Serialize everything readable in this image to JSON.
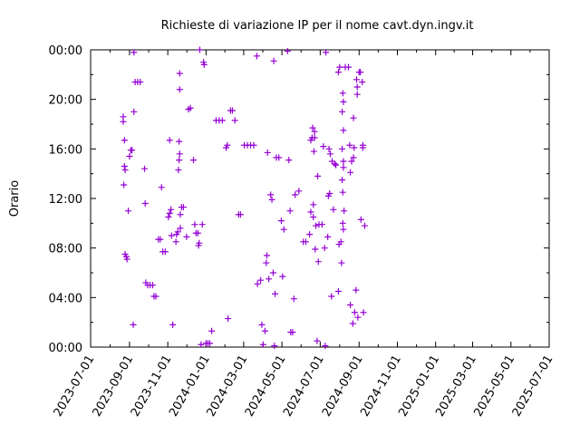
{
  "chart_data": {
    "type": "scatter",
    "title": "Richieste di variazione IP per il nome cavt.dyn.ingv.it",
    "ylabel": "Orario",
    "xlabel": "",
    "x_range": [
      "2023-07-01",
      "2025-07-01"
    ],
    "y_range_hours": [
      0,
      24
    ],
    "x_ticks": [
      "2023-07-01",
      "2023-09-01",
      "2023-11-01",
      "2024-01-01",
      "2024-03-01",
      "2024-05-01",
      "2024-07-01",
      "2024-09-01",
      "2024-11-01",
      "2025-01-01",
      "2025-03-01",
      "2025-05-01",
      "2025-07-01"
    ],
    "y_ticks": [
      "00:00",
      "04:00",
      "08:00",
      "12:00",
      "16:00",
      "20:00",
      "00:00"
    ],
    "marker": "+",
    "color": "#9400d3",
    "grid": false,
    "points": [
      [
        "2023-08-22",
        18.2
      ],
      [
        "2023-08-22",
        18.6
      ],
      [
        "2023-08-23",
        13.1
      ],
      [
        "2023-08-24",
        16.7
      ],
      [
        "2023-08-24",
        14.6
      ],
      [
        "2023-08-25",
        14.3
      ],
      [
        "2023-08-25",
        7.5
      ],
      [
        "2023-08-27",
        7.3
      ],
      [
        "2023-08-28",
        7.1
      ],
      [
        "2023-08-30",
        11.0
      ],
      [
        "2023-09-01",
        15.4
      ],
      [
        "2023-09-03",
        15.9
      ],
      [
        "2023-09-05",
        15.9
      ],
      [
        "2023-09-07",
        1.8
      ],
      [
        "2023-09-08",
        19.0
      ],
      [
        "2023-09-08",
        23.8
      ],
      [
        "2023-09-10",
        21.4
      ],
      [
        "2023-09-14",
        21.4
      ],
      [
        "2023-09-18",
        21.4
      ],
      [
        "2023-09-25",
        14.4
      ],
      [
        "2023-09-26",
        11.6
      ],
      [
        "2023-09-27",
        5.2
      ],
      [
        "2023-09-30",
        5.0
      ],
      [
        "2023-10-04",
        5.0
      ],
      [
        "2023-10-08",
        5.0
      ],
      [
        "2023-10-10",
        4.1
      ],
      [
        "2023-10-13",
        4.1
      ],
      [
        "2023-10-17",
        8.7
      ],
      [
        "2023-10-20",
        8.7
      ],
      [
        "2023-10-22",
        12.9
      ],
      [
        "2023-10-24",
        7.7
      ],
      [
        "2023-10-28",
        7.7
      ],
      [
        "2023-11-02",
        10.5
      ],
      [
        "2023-11-04",
        10.8
      ],
      [
        "2023-11-06",
        11.1
      ],
      [
        "2023-11-04",
        16.7
      ],
      [
        "2023-11-07",
        9.0
      ],
      [
        "2023-11-09",
        1.8
      ],
      [
        "2023-11-14",
        8.5
      ],
      [
        "2023-11-15",
        9.1
      ],
      [
        "2023-11-17",
        9.3
      ],
      [
        "2023-11-18",
        14.3
      ],
      [
        "2023-11-19",
        15.1
      ],
      [
        "2023-11-19",
        16.6
      ],
      [
        "2023-11-20",
        15.6
      ],
      [
        "2023-11-20",
        20.8
      ],
      [
        "2023-11-20",
        22.1
      ],
      [
        "2023-11-21",
        9.6
      ],
      [
        "2023-11-21",
        10.7
      ],
      [
        "2023-11-23",
        11.3
      ],
      [
        "2023-11-26",
        11.3
      ],
      [
        "2023-12-01",
        8.9
      ],
      [
        "2023-12-04",
        19.2
      ],
      [
        "2023-12-07",
        19.3
      ],
      [
        "2023-12-12",
        15.1
      ],
      [
        "2023-12-14",
        9.9
      ],
      [
        "2023-12-16",
        9.2
      ],
      [
        "2023-12-19",
        9.2
      ],
      [
        "2023-12-20",
        8.2
      ],
      [
        "2023-12-21",
        8.4
      ],
      [
        "2023-12-26",
        9.9
      ],
      [
        "2023-12-22",
        24.0
      ],
      [
        "2023-12-28",
        23.0
      ],
      [
        "2023-12-29",
        22.8
      ],
      [
        "2023-12-24",
        0.2
      ],
      [
        "2024-01-01",
        0.3
      ],
      [
        "2024-01-04",
        0.3
      ],
      [
        "2024-01-07",
        0.3
      ],
      [
        "2024-01-10",
        1.3
      ],
      [
        "2024-01-17",
        18.3
      ],
      [
        "2024-01-22",
        18.3
      ],
      [
        "2024-01-27",
        18.3
      ],
      [
        "2024-02-02",
        16.1
      ],
      [
        "2024-02-04",
        16.3
      ],
      [
        "2024-02-05",
        2.3
      ],
      [
        "2024-02-09",
        19.1
      ],
      [
        "2024-02-12",
        19.1
      ],
      [
        "2024-02-16",
        18.3
      ],
      [
        "2024-02-22",
        10.7
      ],
      [
        "2024-02-25",
        10.7
      ],
      [
        "2024-03-02",
        16.3
      ],
      [
        "2024-03-07",
        16.3
      ],
      [
        "2024-03-12",
        16.3
      ],
      [
        "2024-03-17",
        16.3
      ],
      [
        "2024-03-22",
        23.5
      ],
      [
        "2024-03-23",
        5.1
      ],
      [
        "2024-03-28",
        5.4
      ],
      [
        "2024-03-30",
        1.8
      ],
      [
        "2024-04-01",
        0.2
      ],
      [
        "2024-04-04",
        1.3
      ],
      [
        "2024-04-06",
        6.8
      ],
      [
        "2024-04-07",
        7.4
      ],
      [
        "2024-04-08",
        15.7
      ],
      [
        "2024-04-10",
        5.5
      ],
      [
        "2024-04-13",
        12.3
      ],
      [
        "2024-04-15",
        11.9
      ],
      [
        "2024-04-17",
        6.0
      ],
      [
        "2024-04-18",
        23.1
      ],
      [
        "2024-04-19",
        0.1
      ],
      [
        "2024-04-20",
        4.3
      ],
      [
        "2024-04-22",
        15.3
      ],
      [
        "2024-04-26",
        15.3
      ],
      [
        "2024-04-30",
        10.2
      ],
      [
        "2024-05-02",
        5.7
      ],
      [
        "2024-05-04",
        9.5
      ],
      [
        "2024-05-10",
        23.9
      ],
      [
        "2024-05-12",
        15.1
      ],
      [
        "2024-05-14",
        11.0
      ],
      [
        "2024-05-15",
        1.2
      ],
      [
        "2024-05-18",
        1.2
      ],
      [
        "2024-05-20",
        3.9
      ],
      [
        "2024-05-22",
        12.3
      ],
      [
        "2024-05-28",
        12.6
      ],
      [
        "2024-06-04",
        8.5
      ],
      [
        "2024-06-08",
        8.5
      ],
      [
        "2024-06-14",
        9.1
      ],
      [
        "2024-06-16",
        10.9
      ],
      [
        "2024-06-16",
        16.7
      ],
      [
        "2024-06-18",
        16.9
      ],
      [
        "2024-06-19",
        17.7
      ],
      [
        "2024-06-20",
        11.5
      ],
      [
        "2024-06-20",
        10.5
      ],
      [
        "2024-06-21",
        15.8
      ],
      [
        "2024-06-22",
        16.9
      ],
      [
        "2024-06-22",
        17.4
      ],
      [
        "2024-06-23",
        7.9
      ],
      [
        "2024-06-24",
        9.8
      ],
      [
        "2024-06-26",
        0.5
      ],
      [
        "2024-06-27",
        13.8
      ],
      [
        "2024-06-28",
        6.9
      ],
      [
        "2024-06-29",
        9.9
      ],
      [
        "2024-07-04",
        9.9
      ],
      [
        "2024-07-06",
        16.2
      ],
      [
        "2024-07-08",
        8.0
      ],
      [
        "2024-07-09",
        0.1
      ],
      [
        "2024-07-10",
        23.8
      ],
      [
        "2024-07-13",
        8.9
      ],
      [
        "2024-07-14",
        12.2
      ],
      [
        "2024-07-15",
        16.0
      ],
      [
        "2024-07-16",
        12.4
      ],
      [
        "2024-07-17",
        15.6
      ],
      [
        "2024-07-19",
        4.1
      ],
      [
        "2024-07-20",
        15.0
      ],
      [
        "2024-07-22",
        11.1
      ],
      [
        "2024-07-24",
        14.8
      ],
      [
        "2024-07-26",
        14.7
      ],
      [
        "2024-07-30",
        4.5
      ],
      [
        "2024-07-30",
        22.2
      ],
      [
        "2024-07-31",
        8.3
      ],
      [
        "2024-08-01",
        22.6
      ],
      [
        "2024-08-03",
        8.5
      ],
      [
        "2024-08-04",
        6.8
      ],
      [
        "2024-08-05",
        16.0
      ],
      [
        "2024-08-05",
        13.5
      ],
      [
        "2024-08-05",
        19.0
      ],
      [
        "2024-08-06",
        20.5
      ],
      [
        "2024-08-06",
        10.0
      ],
      [
        "2024-08-06",
        12.5
      ],
      [
        "2024-08-07",
        14.5
      ],
      [
        "2024-08-07",
        9.5
      ],
      [
        "2024-08-07",
        17.5
      ],
      [
        "2024-08-07",
        19.8
      ],
      [
        "2024-08-07",
        15.0
      ],
      [
        "2024-08-08",
        11.0
      ],
      [
        "2024-08-10",
        22.6
      ],
      [
        "2024-08-15",
        22.6
      ],
      [
        "2024-08-17",
        16.3
      ],
      [
        "2024-08-18",
        14.1
      ],
      [
        "2024-08-18",
        3.4
      ],
      [
        "2024-08-20",
        15.0
      ],
      [
        "2024-08-22",
        1.9
      ],
      [
        "2024-08-23",
        18.5
      ],
      [
        "2024-08-23",
        15.3
      ],
      [
        "2024-08-24",
        16.1
      ],
      [
        "2024-08-25",
        2.8
      ],
      [
        "2024-08-27",
        4.6
      ],
      [
        "2024-08-28",
        21.6
      ],
      [
        "2024-08-29",
        20.4
      ],
      [
        "2024-08-29",
        21.0
      ],
      [
        "2024-08-30",
        2.4
      ],
      [
        "2024-09-01",
        22.2
      ],
      [
        "2024-09-03",
        22.2
      ],
      [
        "2024-09-04",
        10.3
      ],
      [
        "2024-09-06",
        21.4
      ],
      [
        "2024-09-07",
        16.1
      ],
      [
        "2024-09-07",
        16.3
      ],
      [
        "2024-09-08",
        2.8
      ],
      [
        "2024-09-10",
        9.8
      ]
    ]
  }
}
